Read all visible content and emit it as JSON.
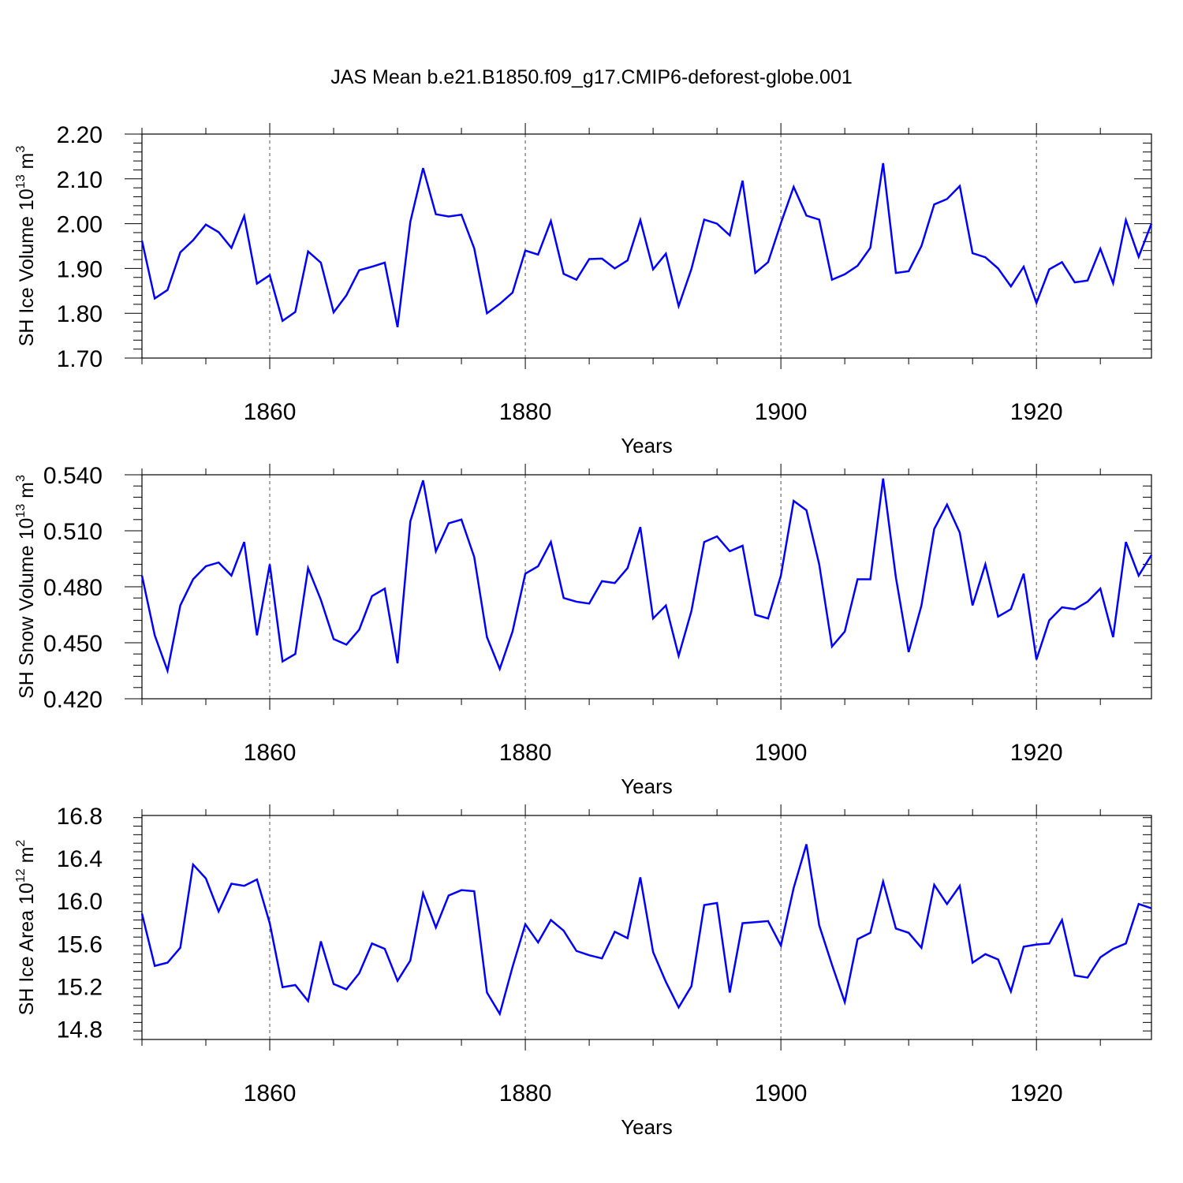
{
  "figure": {
    "title": "JAS Mean b.e21.B1850.f09_g17.CMIP6-deforest-globe.001",
    "line_color": "#0000ff"
  },
  "chart_data": [
    {
      "type": "line",
      "xlabel": "Years",
      "ylabel": {
        "main": "SH Ice Volume 10",
        "sup": "13",
        "unit": " m",
        "unit_sup": "3"
      },
      "x_start": 1850,
      "xlim": [
        1850,
        1929
      ],
      "ylim": [
        1.7,
        2.2
      ],
      "y_ticks": [
        1.7,
        1.8,
        1.9,
        2.0,
        2.1,
        2.2
      ],
      "y_tick_labels": [
        "1.70",
        "1.80",
        "1.90",
        "2.00",
        "2.10",
        "2.20"
      ],
      "x_ticks": [
        1860,
        1880,
        1900,
        1920
      ],
      "x_tick_labels": [
        "1860",
        "1880",
        "1900",
        "1920"
      ],
      "grid": "dashed vertical at major x ticks",
      "values": [
        1.962,
        1.833,
        1.852,
        1.936,
        1.963,
        1.998,
        1.981,
        1.946,
        2.017,
        1.866,
        1.885,
        1.783,
        1.803,
        1.938,
        1.913,
        1.802,
        1.84,
        1.896,
        1.904,
        1.913,
        1.769,
        2.004,
        2.124,
        2.021,
        2.016,
        2.02,
        1.945,
        1.8,
        1.821,
        1.846,
        1.94,
        1.931,
        2.006,
        1.888,
        1.875,
        1.921,
        1.922,
        1.9,
        1.918,
        2.008,
        1.898,
        1.933,
        1.816,
        1.899,
        2.009,
        2.0,
        1.974,
        2.096,
        1.89,
        1.914,
        2.001,
        2.082,
        2.018,
        2.009,
        1.875,
        1.887,
        1.906,
        1.946,
        2.135,
        1.89,
        1.894,
        1.95,
        2.043,
        2.055,
        2.084,
        1.934,
        1.925,
        1.9,
        1.86,
        1.904,
        1.823,
        1.898,
        1.914,
        1.869,
        1.873,
        1.944,
        1.867,
        2.008,
        1.926,
        2.0
      ]
    },
    {
      "type": "line",
      "xlabel": "Years",
      "ylabel": {
        "main": "SH Snow Volume 10",
        "sup": "13",
        "unit": " m",
        "unit_sup": "3"
      },
      "x_start": 1850,
      "xlim": [
        1850,
        1929
      ],
      "ylim": [
        0.42,
        0.54
      ],
      "y_ticks": [
        0.42,
        0.45,
        0.48,
        0.51,
        0.54
      ],
      "y_tick_labels": [
        "0.420",
        "0.450",
        "0.480",
        "0.510",
        "0.540"
      ],
      "x_ticks": [
        1860,
        1880,
        1900,
        1920
      ],
      "x_tick_labels": [
        "1860",
        "1880",
        "1900",
        "1920"
      ],
      "grid": "dashed vertical at major x ticks",
      "values": [
        0.486,
        0.454,
        0.435,
        0.47,
        0.484,
        0.491,
        0.493,
        0.486,
        0.504,
        0.454,
        0.492,
        0.44,
        0.444,
        0.49,
        0.473,
        0.452,
        0.449,
        0.457,
        0.475,
        0.479,
        0.439,
        0.515,
        0.537,
        0.499,
        0.514,
        0.516,
        0.496,
        0.453,
        0.436,
        0.456,
        0.487,
        0.491,
        0.504,
        0.474,
        0.472,
        0.471,
        0.483,
        0.482,
        0.49,
        0.512,
        0.463,
        0.47,
        0.443,
        0.467,
        0.504,
        0.507,
        0.499,
        0.502,
        0.465,
        0.463,
        0.486,
        0.526,
        0.521,
        0.492,
        0.448,
        0.456,
        0.484,
        0.484,
        0.538,
        0.485,
        0.445,
        0.47,
        0.511,
        0.524,
        0.509,
        0.47,
        0.492,
        0.464,
        0.468,
        0.487,
        0.441,
        0.462,
        0.469,
        0.468,
        0.472,
        0.479,
        0.453,
        0.504,
        0.486,
        0.497
      ]
    },
    {
      "type": "line",
      "xlabel": "Years",
      "ylabel": {
        "main": "SH Ice Area 10",
        "sup": "12",
        "unit": " m",
        "unit_sup": "2"
      },
      "x_start": 1850,
      "xlim": [
        1850,
        1929
      ],
      "ylim": [
        14.7,
        16.8
      ],
      "y_ticks": [
        14.8,
        15.2,
        15.6,
        16.0,
        16.4,
        16.8
      ],
      "y_tick_labels": [
        "14.8",
        "15.2",
        "15.6",
        "16.0",
        "16.4",
        "16.8"
      ],
      "x_ticks": [
        1860,
        1880,
        1900,
        1920
      ],
      "x_tick_labels": [
        "1860",
        "1880",
        "1900",
        "1920"
      ],
      "grid": "dashed vertical at major x ticks",
      "values": [
        15.88,
        15.39,
        15.42,
        15.56,
        16.34,
        16.21,
        15.9,
        16.16,
        16.14,
        16.2,
        15.79,
        15.19,
        15.21,
        15.06,
        15.62,
        15.22,
        15.17,
        15.32,
        15.6,
        15.55,
        15.25,
        15.44,
        16.07,
        15.75,
        16.05,
        16.1,
        16.09,
        15.14,
        14.94,
        15.38,
        15.78,
        15.61,
        15.82,
        15.72,
        15.53,
        15.49,
        15.46,
        15.71,
        15.65,
        16.22,
        15.52,
        15.24,
        15.0,
        15.2,
        15.96,
        15.98,
        15.14,
        15.79,
        15.8,
        15.81,
        15.58,
        16.12,
        16.53,
        15.77,
        15.4,
        15.05,
        15.64,
        15.7,
        16.18,
        15.74,
        15.7,
        15.56,
        16.15,
        15.97,
        16.14,
        15.42,
        15.5,
        15.45,
        15.15,
        15.57,
        15.59,
        15.6,
        15.82,
        15.3,
        15.28,
        15.47,
        15.55,
        15.6,
        15.97,
        15.93
      ]
    }
  ]
}
